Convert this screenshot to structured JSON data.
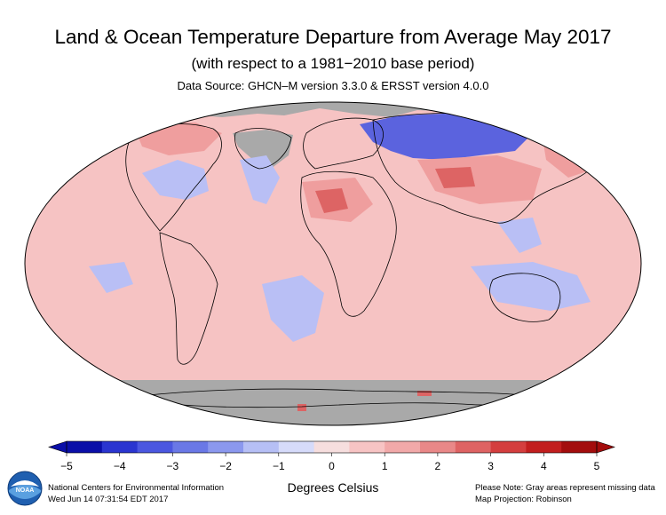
{
  "header": {
    "title": "Land & Ocean Temperature Departure from Average May 2017",
    "subtitle": "(with respect to a 1981−2010 base period)",
    "source": "Data Source: GHCN–M version 3.3.0 & ERSST version 4.0.0"
  },
  "legend": {
    "ticks": [
      "−5",
      "−4",
      "−3",
      "−2",
      "−1",
      "0",
      "1",
      "2",
      "3",
      "4",
      "5"
    ],
    "units": "Degrees Celsius",
    "colors": [
      "#0a0fa8",
      "#2a35d0",
      "#4b57e0",
      "#6a78e6",
      "#8b98ee",
      "#b6bff5",
      "#d6dbfa",
      "#f6dede",
      "#f7c4c4",
      "#f1a9a9",
      "#e98888",
      "#de6363",
      "#d43e3e",
      "#c21e1e",
      "#a30d0d"
    ],
    "missing_color": "#a9a9a9"
  },
  "map": {
    "ocean_base": "#f6c3c3",
    "cool_color": "#b9bff5",
    "warm_color": "#ef9e9e",
    "hot_color": "#dd6464",
    "cold_color": "#5b63de",
    "projection": "Robinson"
  },
  "footer": {
    "org": "National Centers for Environmental Information",
    "timestamp": "Wed Jun 14 07:31:54 EDT 2017",
    "note": "Please Note: Gray areas represent missing data",
    "projection_note": "Map Projection: Robinson"
  },
  "logo": {
    "text": "NOAA"
  }
}
